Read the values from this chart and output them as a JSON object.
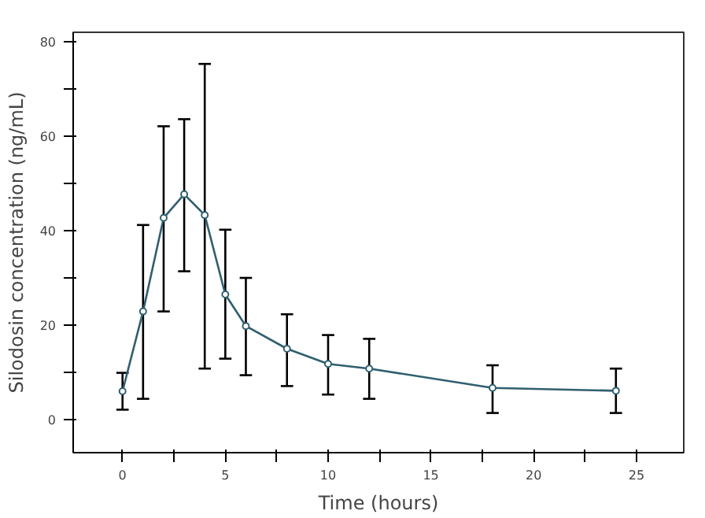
{
  "chart_data": {
    "type": "line",
    "xlabel": "Time (hours)",
    "ylabel": "Silodosin concentration (ng/mL)",
    "x": [
      0,
      1,
      2,
      3,
      4,
      5,
      6,
      8,
      10,
      12,
      18,
      24
    ],
    "series": [
      {
        "color": "#2f5f6f",
        "values": [
          6,
          22.9,
          42.7,
          47.7,
          43.3,
          26.5,
          19.8,
          15,
          11.8,
          10.8,
          6.7,
          6.1
        ],
        "errors": [
          [
            2.1,
            9.9
          ],
          [
            4.4,
            41.2
          ],
          [
            22.9,
            62.1
          ],
          [
            31.4,
            63.6
          ],
          [
            10.8,
            75.3
          ],
          [
            12.9,
            40.2
          ],
          [
            9.4,
            30
          ],
          [
            7.1,
            22.3
          ],
          [
            5.3,
            17.9
          ],
          [
            4.4,
            17.1
          ],
          [
            1.4,
            11.5
          ],
          [
            1.4,
            10.8
          ]
        ]
      }
    ],
    "xlim": [
      -2.4,
      27.3
    ],
    "ylim": [
      -7,
      82
    ],
    "xticks": [
      0,
      {
        "value": 2.5,
        "label": null
      },
      5,
      {
        "value": 7.5,
        "label": null
      },
      10,
      {
        "value": 12.5,
        "label": null
      },
      15,
      {
        "value": 17.5,
        "label": null
      },
      20,
      {
        "value": 22.5,
        "label": null
      },
      25
    ],
    "yticks": [
      0,
      {
        "value": 10,
        "label": null
      },
      20,
      {
        "value": 30,
        "label": null
      },
      40,
      {
        "value": 50,
        "label": null
      },
      60,
      {
        "value": 70,
        "label": null
      },
      80
    ],
    "marker": "circle",
    "line_style": "solid",
    "grid": false
  }
}
